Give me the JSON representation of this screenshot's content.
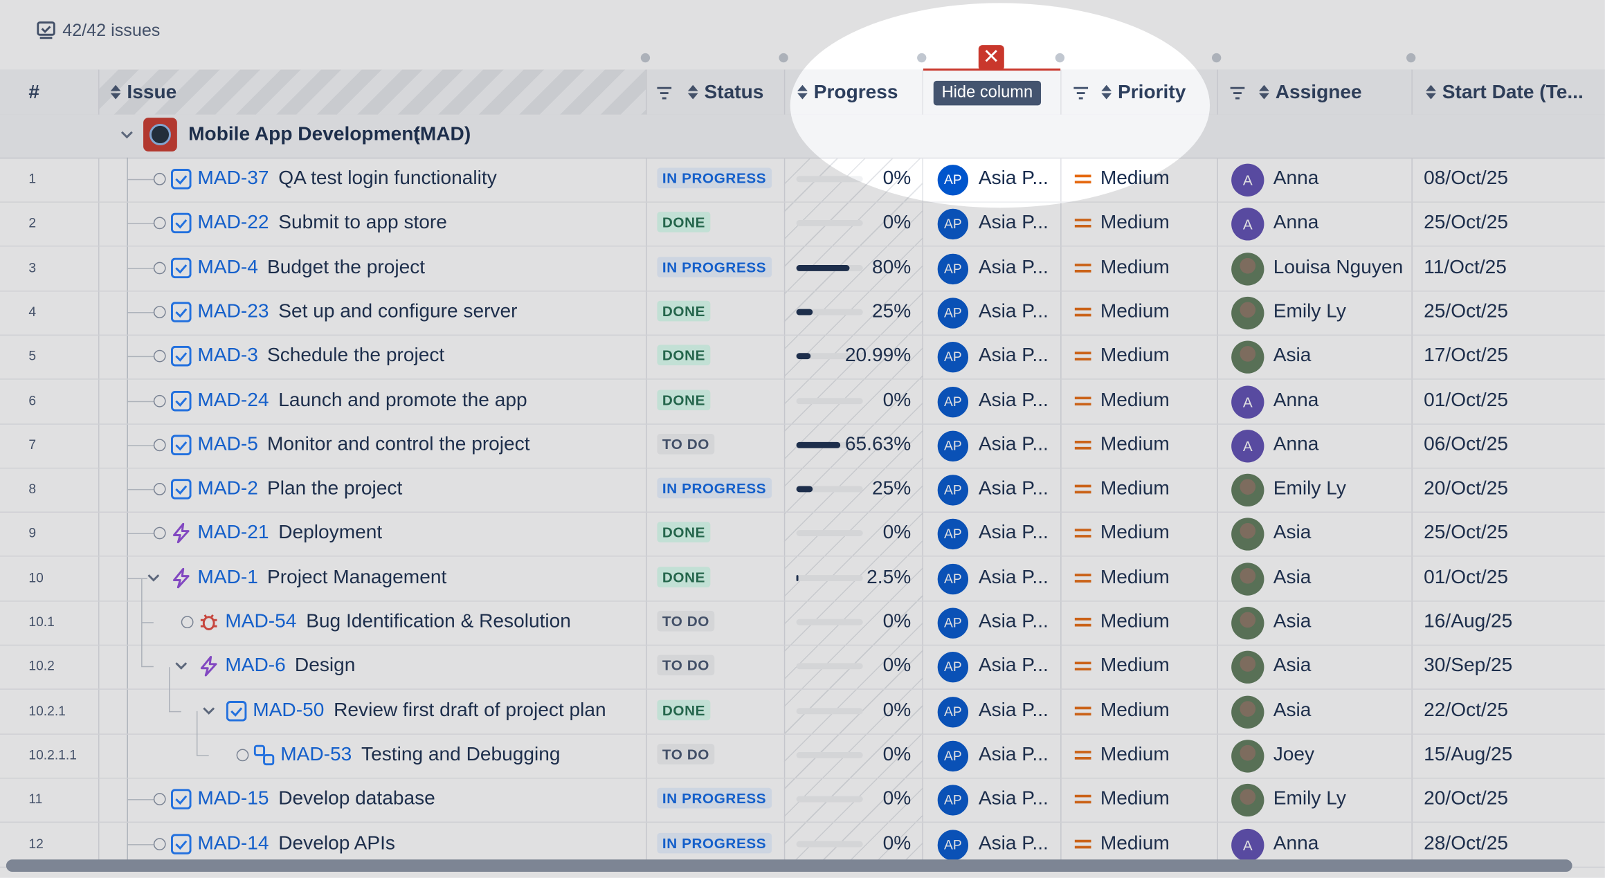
{
  "toolbar": {
    "count": "42/42 issues"
  },
  "header": {
    "number": "#",
    "issue": "Issue",
    "status": "Status",
    "progress": "Progress",
    "tooltip": "Hide column",
    "priority": "Priority",
    "assignee": "Assignee",
    "start": "Start Date (Te..."
  },
  "group": {
    "name": "Mobile App Development",
    "key": "(MAD)"
  },
  "rows": [
    {
      "num": "1",
      "key": "MAD-37",
      "summary": "QA test login functionality",
      "type": "task",
      "level": 0,
      "status": "IN PROGRESS",
      "progress": {
        "value": 0,
        "label": "0%"
      },
      "reporter": {
        "initials": "AP",
        "name": "Asia P..."
      },
      "priority": "Medium",
      "assignee": {
        "initials": "A",
        "name": "Anna"
      },
      "start": "08/Oct/25"
    },
    {
      "num": "2",
      "key": "MAD-22",
      "summary": "Submit to app store",
      "type": "task",
      "level": 0,
      "status": "DONE",
      "progress": {
        "value": 0,
        "label": "0%"
      },
      "reporter": {
        "initials": "AP",
        "name": "Asia P..."
      },
      "priority": "Medium",
      "assignee": {
        "initials": "A",
        "name": "Anna"
      },
      "start": "25/Oct/25"
    },
    {
      "num": "3",
      "key": "MAD-4",
      "summary": "Budget the project",
      "type": "task",
      "level": 0,
      "status": "IN PROGRESS",
      "progress": {
        "value": 80,
        "label": "80%"
      },
      "reporter": {
        "initials": "AP",
        "name": "Asia P..."
      },
      "priority": "Medium",
      "assignee": {
        "name": "Louisa Nguyen"
      },
      "start": "11/Oct/25"
    },
    {
      "num": "4",
      "key": "MAD-23",
      "summary": "Set up and configure server",
      "type": "task",
      "level": 0,
      "status": "DONE",
      "progress": {
        "value": 25,
        "label": "25%"
      },
      "reporter": {
        "initials": "AP",
        "name": "Asia P..."
      },
      "priority": "Medium",
      "assignee": {
        "name": "Emily Ly"
      },
      "start": "25/Oct/25"
    },
    {
      "num": "5",
      "key": "MAD-3",
      "summary": "Schedule the project",
      "type": "task",
      "level": 0,
      "status": "DONE",
      "progress": {
        "value": 20.99,
        "label": "20.99%"
      },
      "reporter": {
        "initials": "AP",
        "name": "Asia P..."
      },
      "priority": "Medium",
      "assignee": {
        "name": "Asia"
      },
      "start": "17/Oct/25"
    },
    {
      "num": "6",
      "key": "MAD-24",
      "summary": "Launch and promote the app",
      "type": "task",
      "level": 0,
      "status": "DONE",
      "progress": {
        "value": 0,
        "label": "0%"
      },
      "reporter": {
        "initials": "AP",
        "name": "Asia P..."
      },
      "priority": "Medium",
      "assignee": {
        "initials": "A",
        "name": "Anna"
      },
      "start": "01/Oct/25"
    },
    {
      "num": "7",
      "key": "MAD-5",
      "summary": "Monitor and control the project",
      "type": "task",
      "level": 0,
      "status": "TO DO",
      "progress": {
        "value": 65.63,
        "label": "65.63%"
      },
      "reporter": {
        "initials": "AP",
        "name": "Asia P..."
      },
      "priority": "Medium",
      "assignee": {
        "initials": "A",
        "name": "Anna"
      },
      "start": "06/Oct/25"
    },
    {
      "num": "8",
      "key": "MAD-2",
      "summary": "Plan the project",
      "type": "task",
      "level": 0,
      "status": "IN PROGRESS",
      "progress": {
        "value": 25,
        "label": "25%"
      },
      "reporter": {
        "initials": "AP",
        "name": "Asia P..."
      },
      "priority": "Medium",
      "assignee": {
        "name": "Emily Ly"
      },
      "start": "20/Oct/25"
    },
    {
      "num": "9",
      "key": "MAD-21",
      "summary": "Deployment",
      "type": "epic",
      "level": 0,
      "status": "DONE",
      "progress": {
        "value": 0,
        "label": "0%"
      },
      "reporter": {
        "initials": "AP",
        "name": "Asia P..."
      },
      "priority": "Medium",
      "assignee": {
        "name": "Asia"
      },
      "start": "25/Oct/25"
    },
    {
      "num": "10",
      "key": "MAD-1",
      "summary": "Project Management",
      "type": "epic",
      "level": 0,
      "expanded": true,
      "status": "DONE",
      "progress": {
        "value": 2.5,
        "label": "2.5%"
      },
      "reporter": {
        "initials": "AP",
        "name": "Asia P..."
      },
      "priority": "Medium",
      "assignee": {
        "name": "Asia"
      },
      "start": "01/Oct/25"
    },
    {
      "num": "10.1",
      "key": "MAD-54",
      "summary": "Bug Identification & Resolution",
      "type": "bug",
      "level": 1,
      "status": "TO DO",
      "progress": {
        "value": 0,
        "label": "0%"
      },
      "reporter": {
        "initials": "AP",
        "name": "Asia P..."
      },
      "priority": "Medium",
      "assignee": {
        "name": "Asia"
      },
      "start": "16/Aug/25"
    },
    {
      "num": "10.2",
      "key": "MAD-6",
      "summary": "Design",
      "type": "epic",
      "level": 1,
      "expanded": true,
      "status": "TO DO",
      "progress": {
        "value": 0,
        "label": "0%"
      },
      "reporter": {
        "initials": "AP",
        "name": "Asia P..."
      },
      "priority": "Medium",
      "assignee": {
        "name": "Asia"
      },
      "start": "30/Sep/25"
    },
    {
      "num": "10.2.1",
      "key": "MAD-50",
      "summary": "Review first draft of project plan",
      "type": "task",
      "level": 2,
      "expanded": true,
      "status": "DONE",
      "progress": {
        "value": 0,
        "label": "0%"
      },
      "reporter": {
        "initials": "AP",
        "name": "Asia P..."
      },
      "priority": "Medium",
      "assignee": {
        "name": "Asia"
      },
      "start": "22/Oct/25"
    },
    {
      "num": "10.2.1.1",
      "key": "MAD-53",
      "summary": "Testing and Debugging",
      "type": "subtask",
      "level": 3,
      "status": "TO DO",
      "progress": {
        "value": 0,
        "label": "0%"
      },
      "reporter": {
        "initials": "AP",
        "name": "Asia P..."
      },
      "priority": "Medium",
      "assignee": {
        "name": "Joey"
      },
      "start": "15/Aug/25"
    },
    {
      "num": "11",
      "key": "MAD-15",
      "summary": "Develop database",
      "type": "task",
      "level": 0,
      "status": "IN PROGRESS",
      "progress": {
        "value": 0,
        "label": "0%"
      },
      "reporter": {
        "initials": "AP",
        "name": "Asia P..."
      },
      "priority": "Medium",
      "assignee": {
        "name": "Emily Ly"
      },
      "start": "20/Oct/25"
    },
    {
      "num": "12",
      "key": "MAD-14",
      "summary": "Develop APIs",
      "type": "task",
      "level": 0,
      "status": "IN PROGRESS",
      "progress": {
        "value": 0,
        "label": "0%"
      },
      "reporter": {
        "initials": "AP",
        "name": "Asia P..."
      },
      "priority": "Medium",
      "assignee": {
        "initials": "A",
        "name": "Anna"
      },
      "start": "28/Oct/25"
    }
  ]
}
